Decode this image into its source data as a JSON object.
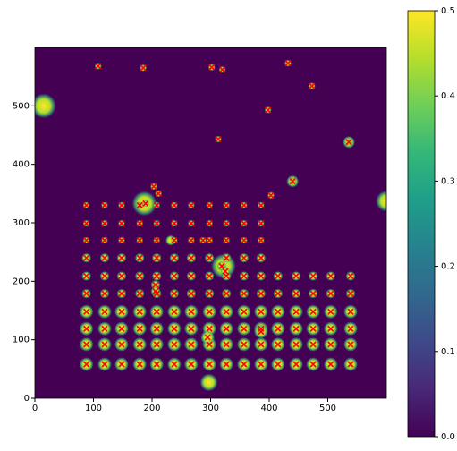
{
  "chart_data": {
    "type": "image-scatter",
    "background": "#440154",
    "marker_color": "#ff0000",
    "xlim": [
      0,
      600
    ],
    "ylim": [
      0,
      600
    ],
    "xticks": [
      0,
      100,
      200,
      300,
      400,
      500
    ],
    "yticks": [
      0,
      100,
      200,
      300,
      400,
      500
    ],
    "colorbar": {
      "lim": [
        0,
        0.5
      ],
      "ticks": [
        {
          "value": 0,
          "label": "0.0"
        },
        0.1,
        0.2,
        0.3,
        0.4,
        0.5
      ],
      "colors": [
        "#440154",
        "#482878",
        "#3e4989",
        "#31688e",
        "#26828e",
        "#1f9e89",
        "#35b779",
        "#6ece58",
        "#b5de2b",
        "#fde725"
      ]
    },
    "x": [
      88,
      119,
      148,
      179,
      208,
      238,
      267,
      298,
      327,
      357,
      386,
      415,
      446,
      475,
      505,
      539,
      88,
      119,
      148,
      179,
      208,
      238,
      267,
      298,
      327,
      357,
      386,
      415,
      446,
      475,
      505,
      539,
      88,
      119,
      148,
      179,
      208,
      238,
      267,
      298,
      327,
      357,
      386,
      415,
      446,
      475,
      505,
      539,
      88,
      119,
      148,
      179,
      208,
      238,
      267,
      298,
      327,
      357,
      386,
      415,
      446,
      475,
      505,
      539,
      88,
      119,
      148,
      179,
      208,
      238,
      267,
      298,
      327,
      357,
      386,
      415,
      446,
      475,
      505,
      539,
      88,
      119,
      148,
      179,
      208,
      238,
      267,
      298,
      327,
      357,
      386,
      415,
      446,
      475,
      505,
      539,
      88,
      119,
      148,
      179,
      208,
      238,
      267,
      298,
      327,
      357,
      386,
      88,
      119,
      148,
      179,
      208,
      238,
      267,
      298,
      327,
      357,
      386,
      88,
      119,
      148,
      179,
      208,
      238,
      267,
      298,
      327,
      357,
      386,
      88,
      119,
      148,
      179,
      208,
      238,
      267,
      298,
      327,
      357,
      386,
      108,
      185,
      302,
      320,
      432,
      473,
      398,
      313,
      536,
      403,
      440,
      189,
      203,
      211,
      287,
      319,
      325,
      206,
      206,
      386,
      295
    ],
    "y": [
      58,
      58,
      58,
      58,
      58,
      58,
      58,
      58,
      58,
      58,
      58,
      58,
      58,
      58,
      58,
      58,
      92,
      92,
      92,
      92,
      92,
      92,
      92,
      92,
      92,
      92,
      92,
      92,
      92,
      92,
      92,
      92,
      119,
      119,
      119,
      119,
      119,
      119,
      119,
      119,
      119,
      119,
      119,
      119,
      119,
      119,
      119,
      119,
      148,
      148,
      148,
      148,
      148,
      148,
      148,
      148,
      148,
      148,
      148,
      148,
      148,
      148,
      148,
      148,
      179,
      179,
      179,
      179,
      179,
      179,
      179,
      179,
      179,
      179,
      179,
      179,
      179,
      179,
      179,
      179,
      209,
      209,
      209,
      209,
      209,
      209,
      209,
      209,
      209,
      209,
      209,
      209,
      209,
      209,
      209,
      209,
      240,
      240,
      240,
      240,
      240,
      240,
      240,
      240,
      240,
      240,
      240,
      270,
      270,
      270,
      270,
      270,
      270,
      270,
      270,
      270,
      270,
      270,
      299,
      299,
      299,
      299,
      299,
      299,
      299,
      299,
      299,
      299,
      299,
      330,
      330,
      330,
      330,
      330,
      330,
      330,
      330,
      330,
      330,
      330,
      568,
      565,
      566,
      562,
      573,
      534,
      493,
      443,
      438,
      347,
      371,
      333,
      362,
      350,
      270,
      226,
      217,
      194,
      183,
      114,
      104
    ]
  }
}
